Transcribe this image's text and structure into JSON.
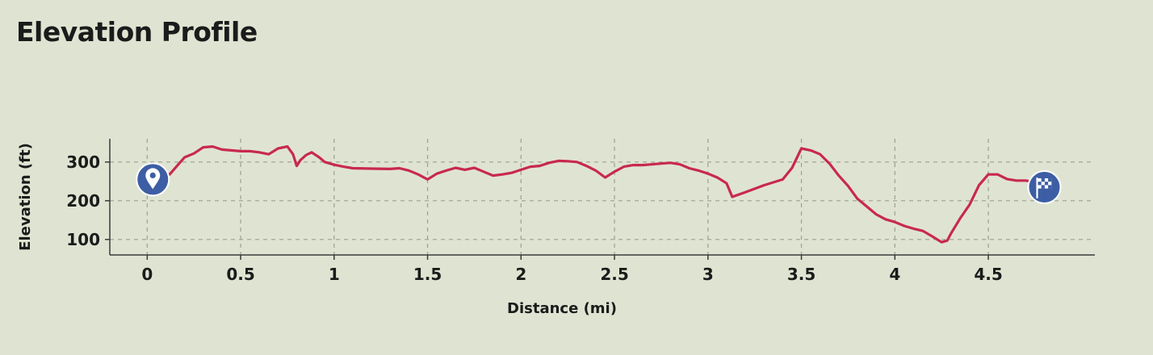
{
  "title": "Elevation Profile",
  "chart_data": {
    "type": "line",
    "xlabel": "Distance (mi)",
    "ylabel": "Elevation (ft)",
    "xlim": [
      -0.2,
      5.07
    ],
    "ylim": [
      60,
      360
    ],
    "x_ticks": [
      0,
      0.5,
      1,
      1.5,
      2,
      2.5,
      3,
      3.5,
      4,
      4.5
    ],
    "x_tick_labels": [
      "0",
      "0.5",
      "1",
      "1.5",
      "2",
      "2.5",
      "3",
      "3.5",
      "4",
      "4.5"
    ],
    "y_ticks": [
      100,
      200,
      300
    ],
    "y_tick_labels": [
      "100",
      "200",
      "300"
    ],
    "grid": true,
    "line_color": "#c8294f",
    "marker_color": "#3d5ea4",
    "start_marker": {
      "icon": "map-pin-icon",
      "x": 0.03,
      "y": 255
    },
    "end_marker": {
      "icon": "checkered-flag-icon",
      "x": 4.8,
      "y": 235
    },
    "series": [
      {
        "x": [
          0,
          0.07,
          0.12,
          0.16,
          0.2,
          0.25,
          0.3,
          0.35,
          0.4,
          0.45,
          0.5,
          0.55,
          0.6,
          0.65,
          0.7,
          0.75,
          0.78,
          0.8,
          0.82,
          0.85,
          0.88,
          0.92,
          0.95,
          1.0,
          1.05,
          1.1,
          1.2,
          1.3,
          1.35,
          1.4,
          1.45,
          1.5,
          1.55,
          1.6,
          1.65,
          1.7,
          1.75,
          1.8,
          1.85,
          1.9,
          1.95,
          2.0,
          2.05,
          2.1,
          2.15,
          2.2,
          2.25,
          2.3,
          2.35,
          2.4,
          2.45,
          2.5,
          2.55,
          2.6,
          2.65,
          2.7,
          2.75,
          2.8,
          2.85,
          2.9,
          2.95,
          3.0,
          3.05,
          3.1,
          3.13,
          3.2,
          3.3,
          3.4,
          3.45,
          3.5,
          3.55,
          3.6,
          3.65,
          3.7,
          3.75,
          3.8,
          3.85,
          3.9,
          3.95,
          4.0,
          4.05,
          4.1,
          4.15,
          4.2,
          4.25,
          4.28,
          4.3,
          4.35,
          4.4,
          4.45,
          4.5,
          4.55,
          4.6,
          4.65,
          4.7,
          4.75,
          4.8
        ],
        "y": [
          270,
          275,
          268,
          290,
          312,
          322,
          338,
          340,
          332,
          330,
          328,
          328,
          325,
          320,
          335,
          340,
          320,
          290,
          305,
          318,
          325,
          312,
          300,
          293,
          288,
          284,
          283,
          282,
          284,
          278,
          268,
          255,
          270,
          278,
          285,
          280,
          285,
          275,
          265,
          268,
          272,
          280,
          288,
          290,
          298,
          303,
          302,
          300,
          290,
          278,
          260,
          275,
          288,
          292,
          292,
          294,
          296,
          298,
          294,
          284,
          278,
          270,
          260,
          245,
          210,
          222,
          240,
          255,
          285,
          335,
          330,
          320,
          296,
          265,
          238,
          205,
          185,
          165,
          152,
          145,
          135,
          128,
          122,
          108,
          93,
          97,
          115,
          155,
          190,
          240,
          268,
          268,
          256,
          252,
          252,
          248,
          240
        ]
      }
    ]
  }
}
